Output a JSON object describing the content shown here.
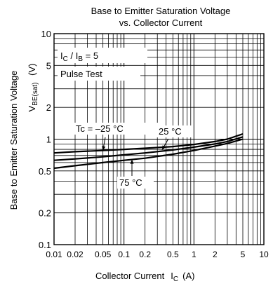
{
  "chart_data": {
    "type": "line",
    "title": [
      "Base to Emitter Saturation Voltage",
      "vs. Collector Current"
    ],
    "xlabel": {
      "main": "Collector Current",
      "symbol": "I",
      "sub": "C",
      "unit": "(A)"
    },
    "ylabel": {
      "main": "Base to Emitter Saturation Voltage",
      "symbol": "V",
      "sub": "BE(sat)",
      "unit": "(V)"
    },
    "x_scale": "log",
    "y_scale": "log",
    "xlim": [
      0.01,
      10
    ],
    "ylim": [
      0.1,
      10
    ],
    "grid": true,
    "x_ticks": [
      {
        "value": 0.01,
        "label": "0.01"
      },
      {
        "value": 0.02,
        "label": "0.02"
      },
      {
        "value": 0.05,
        "label": "0.05"
      },
      {
        "value": 0.1,
        "label": "0.1"
      },
      {
        "value": 0.2,
        "label": "0.2"
      },
      {
        "value": 0.5,
        "label": "0.5"
      },
      {
        "value": 1,
        "label": "1"
      },
      {
        "value": 2,
        "label": "2"
      },
      {
        "value": 5,
        "label": "5"
      },
      {
        "value": 10,
        "label": "10"
      }
    ],
    "y_ticks": [
      {
        "value": 0.1,
        "label": "0.1"
      },
      {
        "value": 0.2,
        "label": "0.2"
      },
      {
        "value": 0.5,
        "label": "0.5"
      },
      {
        "value": 1,
        "label": "1"
      },
      {
        "value": 2,
        "label": "2"
      },
      {
        "value": 5,
        "label": "5"
      },
      {
        "value": 10,
        "label": "10"
      }
    ],
    "conditions": {
      "ratio": {
        "a": "I",
        "a_sub": "C",
        "sep": " / ",
        "b": "I",
        "b_sub": "B",
        "eq": " = 5"
      },
      "pulse": "Pulse Test"
    },
    "series": [
      {
        "name": "Tc = –25 °C",
        "x": [
          0.01,
          0.02,
          0.05,
          0.1,
          0.2,
          0.5,
          1,
          2,
          3,
          5
        ],
        "y": [
          0.74,
          0.76,
          0.78,
          0.8,
          0.82,
          0.85,
          0.89,
          0.95,
          1.0,
          1.12
        ]
      },
      {
        "name": "25 °C",
        "x": [
          0.01,
          0.02,
          0.05,
          0.1,
          0.2,
          0.5,
          1,
          2,
          3,
          5
        ],
        "y": [
          0.63,
          0.65,
          0.68,
          0.71,
          0.74,
          0.79,
          0.84,
          0.9,
          0.95,
          1.05
        ]
      },
      {
        "name": "75 °C",
        "x": [
          0.01,
          0.02,
          0.05,
          0.1,
          0.2,
          0.5,
          1,
          2,
          3,
          5
        ],
        "y": [
          0.53,
          0.56,
          0.6,
          0.63,
          0.66,
          0.72,
          0.78,
          0.86,
          0.91,
          1.0
        ]
      }
    ],
    "annotations": [
      {
        "text": "Tc = –25 °C",
        "series": 0,
        "arrow_to": [
          0.05,
          0.78
        ]
      },
      {
        "text": "25 °C",
        "series": 1,
        "arrow_to": [
          0.35,
          0.79
        ]
      },
      {
        "text": "75 °C",
        "series": 2,
        "arrow_to": [
          0.13,
          0.64
        ]
      }
    ]
  }
}
